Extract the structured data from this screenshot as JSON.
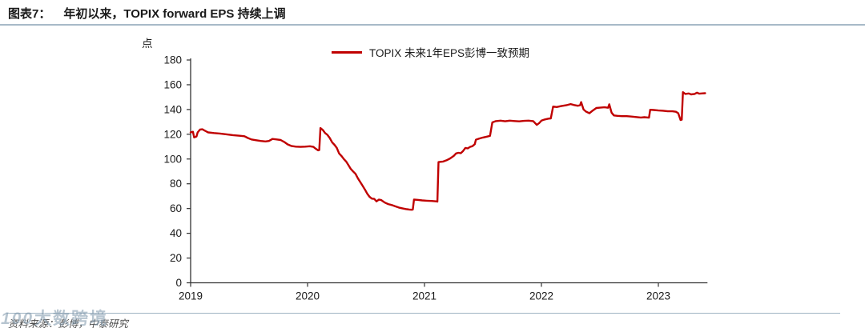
{
  "header": {
    "figure_label": "图表7：",
    "title": "年初以来，TOPIX forward EPS 持续上调"
  },
  "chart_data": {
    "type": "line",
    "title": "年初以来，TOPIX forward EPS 持续上调",
    "unit_label": "点",
    "xlabel": "",
    "ylabel": "点",
    "grid": false,
    "legend_position": "top-center",
    "xlim": [
      2019,
      2023.42
    ],
    "ylim": [
      0,
      180
    ],
    "y_ticks": [
      0,
      20,
      40,
      60,
      80,
      100,
      120,
      140,
      160,
      180
    ],
    "x_ticks": [
      {
        "value": 2019,
        "label": "2019"
      },
      {
        "value": 2020,
        "label": "2020"
      },
      {
        "value": 2021,
        "label": "2021"
      },
      {
        "value": 2022,
        "label": "2022"
      },
      {
        "value": 2023,
        "label": "2023"
      }
    ],
    "series": [
      {
        "name": "TOPIX 未来1年EPS彭博一致预期",
        "color": "#c00000",
        "points": [
          [
            2019.0,
            121.5
          ],
          [
            2019.02,
            122
          ],
          [
            2019.03,
            117.5
          ],
          [
            2019.05,
            118.2
          ],
          [
            2019.06,
            121.5
          ],
          [
            2019.08,
            123.8
          ],
          [
            2019.1,
            124
          ],
          [
            2019.13,
            122.5
          ],
          [
            2019.15,
            121.5
          ],
          [
            2019.2,
            121
          ],
          [
            2019.25,
            120.6
          ],
          [
            2019.3,
            120
          ],
          [
            2019.36,
            119.3
          ],
          [
            2019.42,
            118.8
          ],
          [
            2019.46,
            118.4
          ],
          [
            2019.49,
            117
          ],
          [
            2019.52,
            115.8
          ],
          [
            2019.56,
            115.2
          ],
          [
            2019.6,
            114.6
          ],
          [
            2019.64,
            114.2
          ],
          [
            2019.67,
            114.6
          ],
          [
            2019.7,
            116.2
          ],
          [
            2019.73,
            115.9
          ],
          [
            2019.77,
            115.4
          ],
          [
            2019.8,
            113.8
          ],
          [
            2019.83,
            111.8
          ],
          [
            2019.86,
            110.6
          ],
          [
            2019.9,
            110
          ],
          [
            2019.94,
            109.8
          ],
          [
            2019.98,
            110
          ],
          [
            2020.02,
            110.3
          ],
          [
            2020.05,
            109.8
          ],
          [
            2020.07,
            108.3
          ],
          [
            2020.09,
            107
          ],
          [
            2020.1,
            107.2
          ],
          [
            2020.11,
            125
          ],
          [
            2020.13,
            123.5
          ],
          [
            2020.15,
            121
          ],
          [
            2020.17,
            119.5
          ],
          [
            2020.19,
            117
          ],
          [
            2020.21,
            113.5
          ],
          [
            2020.23,
            111.5
          ],
          [
            2020.25,
            109
          ],
          [
            2020.27,
            104.5
          ],
          [
            2020.29,
            102.5
          ],
          [
            2020.31,
            100
          ],
          [
            2020.33,
            98
          ],
          [
            2020.35,
            95
          ],
          [
            2020.37,
            92
          ],
          [
            2020.39,
            90
          ],
          [
            2020.41,
            88
          ],
          [
            2020.43,
            84.5
          ],
          [
            2020.45,
            81.5
          ],
          [
            2020.47,
            78.5
          ],
          [
            2020.49,
            75.5
          ],
          [
            2020.51,
            72
          ],
          [
            2020.53,
            69.5
          ],
          [
            2020.55,
            68
          ],
          [
            2020.57,
            67.8
          ],
          [
            2020.59,
            65.8
          ],
          [
            2020.61,
            67.2
          ],
          [
            2020.63,
            66.8
          ],
          [
            2020.66,
            64.8
          ],
          [
            2020.69,
            63.6
          ],
          [
            2020.72,
            62.8
          ],
          [
            2020.75,
            61.8
          ],
          [
            2020.78,
            60.8
          ],
          [
            2020.81,
            60.2
          ],
          [
            2020.84,
            59.6
          ],
          [
            2020.87,
            59.2
          ],
          [
            2020.89,
            59
          ],
          [
            2020.9,
            59.2
          ],
          [
            2020.91,
            67.2
          ],
          [
            2020.94,
            67
          ],
          [
            2020.98,
            66.6
          ],
          [
            2021.02,
            66.3
          ],
          [
            2021.06,
            66.1
          ],
          [
            2021.1,
            65.8
          ],
          [
            2021.11,
            65.6
          ],
          [
            2021.12,
            97.5
          ],
          [
            2021.16,
            98
          ],
          [
            2021.19,
            99
          ],
          [
            2021.22,
            100.5
          ],
          [
            2021.25,
            102.5
          ],
          [
            2021.27,
            104.5
          ],
          [
            2021.29,
            105
          ],
          [
            2021.31,
            104.7
          ],
          [
            2021.33,
            106.5
          ],
          [
            2021.35,
            109
          ],
          [
            2021.37,
            108.6
          ],
          [
            2021.39,
            109.8
          ],
          [
            2021.41,
            110.4
          ],
          [
            2021.43,
            112
          ],
          [
            2021.44,
            115.6
          ],
          [
            2021.47,
            116.6
          ],
          [
            2021.5,
            117.4
          ],
          [
            2021.53,
            118
          ],
          [
            2021.56,
            118.7
          ],
          [
            2021.58,
            129.6
          ],
          [
            2021.61,
            130.6
          ],
          [
            2021.65,
            131
          ],
          [
            2021.69,
            130.5
          ],
          [
            2021.73,
            131
          ],
          [
            2021.77,
            130.7
          ],
          [
            2021.81,
            130.4
          ],
          [
            2021.85,
            130.8
          ],
          [
            2021.89,
            131
          ],
          [
            2021.93,
            130.6
          ],
          [
            2021.96,
            127.6
          ],
          [
            2021.98,
            129
          ],
          [
            2022.0,
            131
          ],
          [
            2022.03,
            132
          ],
          [
            2022.06,
            132.6
          ],
          [
            2022.08,
            132.8
          ],
          [
            2022.1,
            142.4
          ],
          [
            2022.13,
            142
          ],
          [
            2022.17,
            142.8
          ],
          [
            2022.21,
            143.4
          ],
          [
            2022.25,
            144.4
          ],
          [
            2022.28,
            143.6
          ],
          [
            2022.31,
            143
          ],
          [
            2022.33,
            143.4
          ],
          [
            2022.34,
            146
          ],
          [
            2022.36,
            140
          ],
          [
            2022.38,
            138.4
          ],
          [
            2022.41,
            137
          ],
          [
            2022.44,
            139.2
          ],
          [
            2022.47,
            141.2
          ],
          [
            2022.5,
            141.5
          ],
          [
            2022.54,
            141.8
          ],
          [
            2022.57,
            141.4
          ],
          [
            2022.58,
            144.2
          ],
          [
            2022.6,
            137.5
          ],
          [
            2022.62,
            135.2
          ],
          [
            2022.65,
            134.9
          ],
          [
            2022.69,
            134.6
          ],
          [
            2022.73,
            134.6
          ],
          [
            2022.77,
            134.3
          ],
          [
            2022.81,
            133.9
          ],
          [
            2022.85,
            133.5
          ],
          [
            2022.88,
            133.8
          ],
          [
            2022.92,
            133.4
          ],
          [
            2022.93,
            139.8
          ],
          [
            2022.96,
            139.6
          ],
          [
            2023.0,
            139.2
          ],
          [
            2023.04,
            139
          ],
          [
            2023.08,
            138.6
          ],
          [
            2023.12,
            138.6
          ],
          [
            2023.15,
            138.2
          ],
          [
            2023.17,
            137
          ],
          [
            2023.19,
            131.5
          ],
          [
            2023.2,
            131.8
          ],
          [
            2023.21,
            154
          ],
          [
            2023.23,
            152.6
          ],
          [
            2023.26,
            153
          ],
          [
            2023.28,
            152.2
          ],
          [
            2023.31,
            152.6
          ],
          [
            2023.33,
            153.6
          ],
          [
            2023.35,
            152.8
          ],
          [
            2023.37,
            153
          ],
          [
            2023.4,
            153.2
          ]
        ]
      }
    ]
  },
  "footer": {
    "source": "资料来源：彭博，中泰研究",
    "watermark_logo": "100",
    "watermark_text": "大数跨境"
  },
  "colors": {
    "series_red": "#c00000",
    "rule_blue": "#a8bac8",
    "axis": "#333333",
    "tick_text": "#1a1a1a"
  }
}
